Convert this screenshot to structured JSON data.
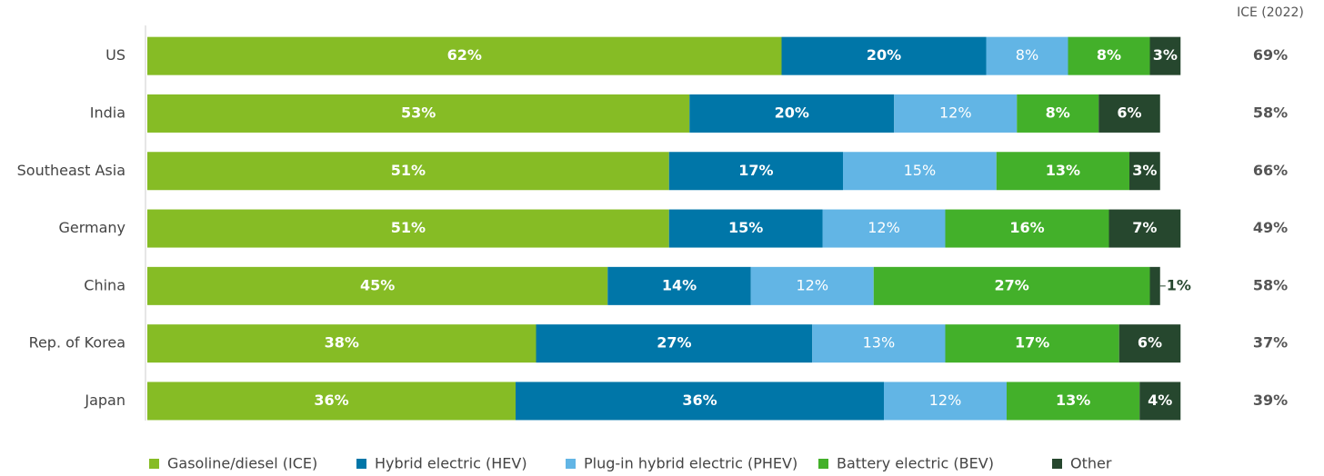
{
  "chart_data": {
    "type": "stacked-bar-horizontal",
    "categories": [
      "US",
      "India",
      "Southeast Asia",
      "Germany",
      "China",
      "Rep. of Korea",
      "Japan"
    ],
    "xlim": [
      0,
      100
    ],
    "series": [
      {
        "name": "Gasoline/diesel (ICE)",
        "color": "#86bc25",
        "values": [
          62,
          53,
          51,
          51,
          45,
          38,
          36
        ],
        "value_labels": [
          "62%",
          "53%",
          "51%",
          "51%",
          "45%",
          "38%",
          "36%"
        ]
      },
      {
        "name": "Hybrid electric (HEV)",
        "color": "#0076a8",
        "values": [
          20,
          20,
          17,
          15,
          14,
          27,
          36
        ],
        "value_labels": [
          "20%",
          "20%",
          "17%",
          "15%",
          "14%",
          "27%",
          "36%"
        ]
      },
      {
        "name": "Plug-in hybrid electric (PHEV)",
        "color": "#62b5e5",
        "values": [
          8,
          12,
          15,
          12,
          12,
          13,
          12
        ],
        "value_labels": [
          "8%",
          "12%",
          "15%",
          "12%",
          "12%",
          "13%",
          "12%"
        ]
      },
      {
        "name": "Battery electric (BEV)",
        "color": "#43b02a",
        "values": [
          8,
          8,
          13,
          16,
          27,
          17,
          13
        ],
        "value_labels": [
          "8%",
          "8%",
          "13%",
          "16%",
          "27%",
          "17%",
          "13%"
        ]
      },
      {
        "name": "Other",
        "color": "#26472e",
        "values": [
          3,
          6,
          3,
          7,
          1,
          6,
          4
        ],
        "value_labels": [
          "3%",
          "6%",
          "3%",
          "7%",
          "1%",
          "6%",
          "4%"
        ]
      }
    ],
    "ice_2022": {
      "label": "ICE (2022)",
      "values": [
        69,
        58,
        66,
        49,
        58,
        37,
        39
      ],
      "value_labels": [
        "69%",
        "58%",
        "66%",
        "49%",
        "58%",
        "37%",
        "39%"
      ]
    }
  }
}
